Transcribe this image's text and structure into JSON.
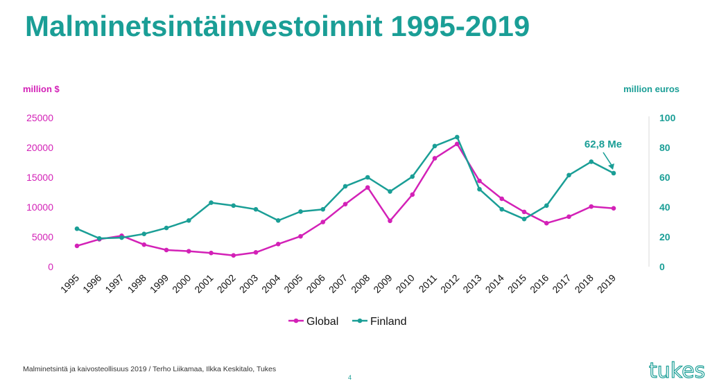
{
  "slide": {
    "title": "Malminetsintäinvestoinnit 1995-2019",
    "left_unit": "million $",
    "right_unit": "million euros",
    "footer": "Malminetsintä ja kaivosteollisuus 2019 / Terho Liikamaa, Ilkka Keskitalo, Tukes",
    "page_number": "4",
    "logo_text": "tukes"
  },
  "colors": {
    "global": "#d321b7",
    "finland": "#1a9e96"
  },
  "chart_data": {
    "type": "line",
    "title": "",
    "x": [
      "1995",
      "1996",
      "1997",
      "1998",
      "1999",
      "2000",
      "2001",
      "2002",
      "2003",
      "2004",
      "2005",
      "2006",
      "2007",
      "2008",
      "2009",
      "2010",
      "2011",
      "2012",
      "2013",
      "2014",
      "2015",
      "2016",
      "2017",
      "2018",
      "2019"
    ],
    "left_axis": {
      "label": "million $",
      "range": [
        0,
        25000
      ],
      "ticks": [
        0,
        5000,
        10000,
        15000,
        20000,
        25000
      ]
    },
    "right_axis": {
      "label": "million euros",
      "range": [
        0,
        100
      ],
      "ticks": [
        0,
        20,
        40,
        60,
        80,
        100
      ]
    },
    "series": [
      {
        "name": "Global",
        "axis": "left",
        "color": "#d321b7",
        "values": [
          3500,
          4600,
          5200,
          3700,
          2800,
          2600,
          2300,
          1900,
          2400,
          3800,
          5100,
          7500,
          10500,
          13300,
          7700,
          12100,
          18200,
          20600,
          14400,
          11400,
          9200,
          7300,
          8400,
          10100,
          9800
        ]
      },
      {
        "name": "Finland",
        "axis": "right",
        "color": "#1a9e96",
        "values": [
          25.5,
          19,
          19.5,
          22,
          26,
          31,
          43,
          41,
          38.5,
          31,
          37,
          38.5,
          54,
          60,
          50.5,
          60.5,
          81,
          87,
          52,
          38.5,
          32,
          41,
          61.5,
          70.5,
          62.8
        ]
      }
    ],
    "annotations": [
      {
        "text": "62,8 Me",
        "series": "Finland",
        "x": "2019",
        "y": 62.8
      }
    ],
    "legend": {
      "position": "bottom",
      "entries": [
        "Global",
        "Finland"
      ]
    },
    "grid": false
  }
}
